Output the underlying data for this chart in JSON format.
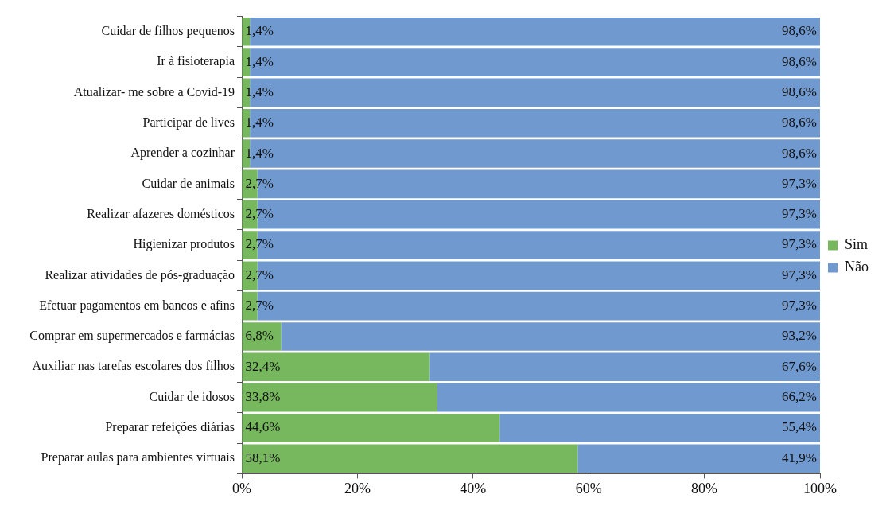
{
  "chart_data": {
    "type": "bar",
    "orientation": "horizontal",
    "stacked": true,
    "legend": "right",
    "grid": false,
    "categories": [
      "Cuidar de filhos pequenos",
      "Ir à fisioterapia",
      "Atualizar- me sobre a Covid-19",
      "Participar de lives",
      "Aprender a cozinhar",
      "Cuidar de animais",
      "Realizar afazeres domésticos",
      "Higienizar produtos",
      "Realizar atividades de pós-graduação",
      "Efetuar pagamentos em bancos e afins",
      "Comprar em supermercados e farmácias",
      "Auxiliar nas tarefas escolares dos filhos",
      "Cuidar de idosos",
      "Preparar refeições diárias",
      "Preparar aulas para ambientes virtuais"
    ],
    "series": [
      {
        "name": "Sim",
        "color": "#77b85f",
        "values": [
          1.4,
          1.4,
          1.4,
          1.4,
          1.4,
          2.7,
          2.7,
          2.7,
          2.7,
          2.7,
          6.8,
          32.4,
          33.8,
          44.6,
          58.1
        ],
        "value_labels": [
          "1,4%",
          "1,4%",
          "1,4%",
          "1,4%",
          "1,4%",
          "2,7%",
          "2,7%",
          "2,7%",
          "2,7%",
          "2,7%",
          "6,8%",
          "32,4%",
          "33,8%",
          "44,6%",
          "58,1%"
        ]
      },
      {
        "name": "Não",
        "color": "#7099cf",
        "values": [
          98.6,
          98.6,
          98.6,
          98.6,
          98.6,
          97.3,
          97.3,
          97.3,
          97.3,
          97.3,
          93.2,
          67.6,
          66.2,
          55.4,
          41.9
        ],
        "value_labels": [
          "98,6%",
          "98,6%",
          "98,6%",
          "98,6%",
          "98,6%",
          "97,3%",
          "97,3%",
          "97,3%",
          "97,3%",
          "97,3%",
          "93,2%",
          "67,6%",
          "66,2%",
          "55,4%",
          "41,9%"
        ]
      }
    ],
    "xlim": [
      0,
      100
    ],
    "xticks": [
      {
        "value": 0,
        "label": "0%"
      },
      {
        "value": 20,
        "label": "20%"
      },
      {
        "value": 40,
        "label": "40%"
      },
      {
        "value": 60,
        "label": "60%"
      },
      {
        "value": 80,
        "label": "80%"
      },
      {
        "value": 100,
        "label": "100%"
      }
    ]
  }
}
